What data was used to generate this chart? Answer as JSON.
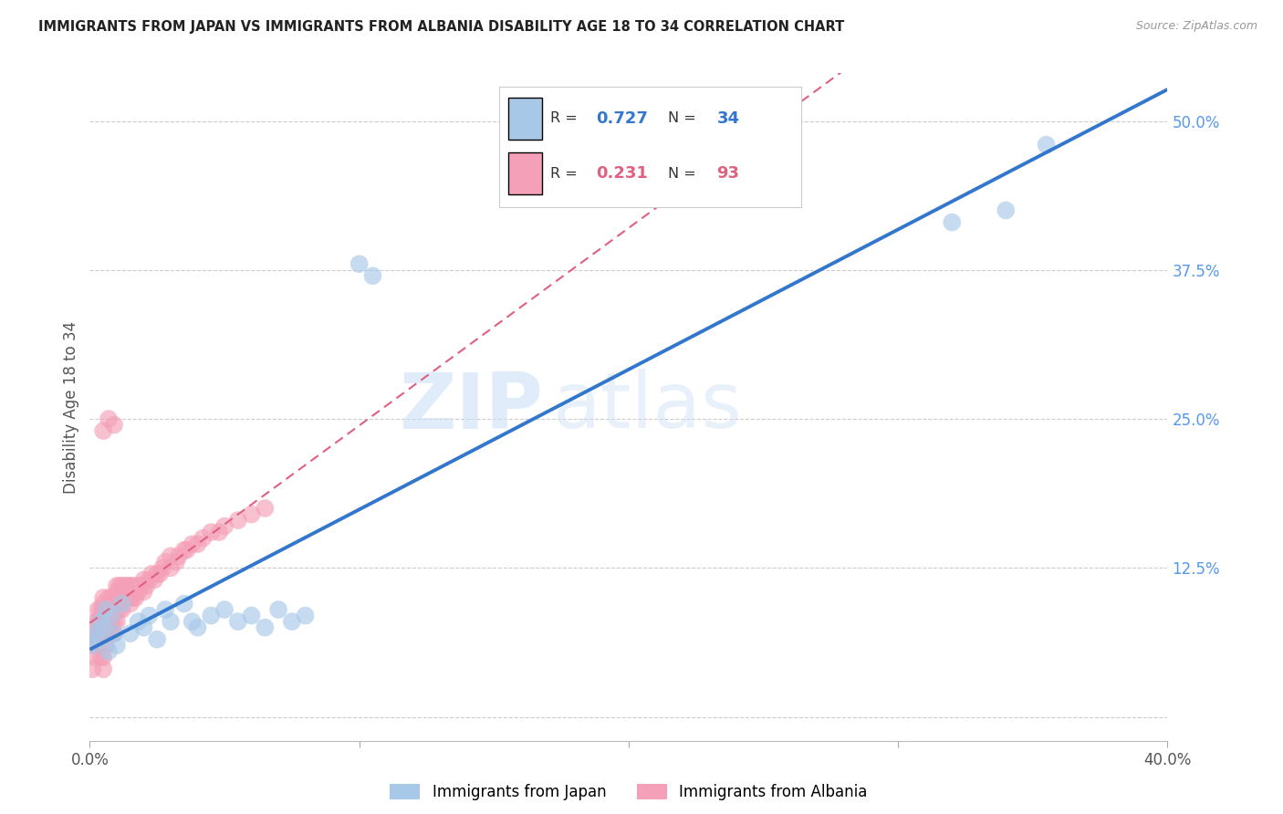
{
  "title": "IMMIGRANTS FROM JAPAN VS IMMIGRANTS FROM ALBANIA DISABILITY AGE 18 TO 34 CORRELATION CHART",
  "source": "Source: ZipAtlas.com",
  "ylabel": "Disability Age 18 to 34",
  "xmin": 0.0,
  "xmax": 0.4,
  "ymin": -0.02,
  "ymax": 0.54,
  "y_tick_vals_right": [
    0.0,
    0.125,
    0.25,
    0.375,
    0.5
  ],
  "y_tick_labels_right": [
    "",
    "12.5%",
    "25.0%",
    "37.5%",
    "50.0%"
  ],
  "japan_R": 0.727,
  "japan_N": 34,
  "albania_R": 0.231,
  "albania_N": 93,
  "japan_color": "#a8c8e8",
  "albania_color": "#f4a0b8",
  "japan_line_color": "#3377cc",
  "albania_line_color": "#e06080",
  "watermark_zip": "ZIP",
  "watermark_atlas": "atlas",
  "japan_scatter_x": [
    0.001,
    0.002,
    0.003,
    0.004,
    0.005,
    0.006,
    0.007,
    0.008,
    0.009,
    0.01,
    0.012,
    0.015,
    0.018,
    0.02,
    0.022,
    0.025,
    0.028,
    0.03,
    0.035,
    0.038,
    0.04,
    0.045,
    0.05,
    0.055,
    0.06,
    0.065,
    0.07,
    0.075,
    0.08,
    0.1,
    0.105,
    0.32,
    0.34,
    0.355
  ],
  "japan_scatter_y": [
    0.06,
    0.07,
    0.065,
    0.08,
    0.075,
    0.09,
    0.055,
    0.085,
    0.07,
    0.06,
    0.095,
    0.07,
    0.08,
    0.075,
    0.085,
    0.065,
    0.09,
    0.08,
    0.095,
    0.08,
    0.075,
    0.085,
    0.09,
    0.08,
    0.085,
    0.075,
    0.09,
    0.08,
    0.085,
    0.38,
    0.37,
    0.415,
    0.425,
    0.48
  ],
  "albania_scatter_x": [
    0.001,
    0.001,
    0.002,
    0.002,
    0.002,
    0.003,
    0.003,
    0.003,
    0.003,
    0.004,
    0.004,
    0.004,
    0.004,
    0.005,
    0.005,
    0.005,
    0.005,
    0.005,
    0.005,
    0.005,
    0.005,
    0.005,
    0.005,
    0.006,
    0.006,
    0.006,
    0.006,
    0.007,
    0.007,
    0.007,
    0.007,
    0.007,
    0.008,
    0.008,
    0.008,
    0.008,
    0.009,
    0.009,
    0.009,
    0.01,
    0.01,
    0.01,
    0.01,
    0.01,
    0.01,
    0.011,
    0.011,
    0.011,
    0.012,
    0.012,
    0.012,
    0.013,
    0.013,
    0.013,
    0.014,
    0.014,
    0.015,
    0.015,
    0.015,
    0.016,
    0.016,
    0.017,
    0.018,
    0.018,
    0.019,
    0.02,
    0.02,
    0.021,
    0.022,
    0.023,
    0.024,
    0.025,
    0.026,
    0.027,
    0.028,
    0.03,
    0.03,
    0.032,
    0.033,
    0.035,
    0.036,
    0.038,
    0.04,
    0.042,
    0.045,
    0.048,
    0.05,
    0.055,
    0.06,
    0.065,
    0.005,
    0.007,
    0.009
  ],
  "albania_scatter_y": [
    0.04,
    0.06,
    0.05,
    0.07,
    0.08,
    0.06,
    0.07,
    0.08,
    0.09,
    0.05,
    0.07,
    0.08,
    0.09,
    0.04,
    0.05,
    0.06,
    0.07,
    0.075,
    0.08,
    0.085,
    0.09,
    0.095,
    0.1,
    0.06,
    0.07,
    0.08,
    0.09,
    0.07,
    0.08,
    0.085,
    0.09,
    0.1,
    0.07,
    0.08,
    0.09,
    0.1,
    0.07,
    0.08,
    0.09,
    0.08,
    0.09,
    0.095,
    0.1,
    0.105,
    0.11,
    0.09,
    0.1,
    0.11,
    0.09,
    0.1,
    0.11,
    0.1,
    0.105,
    0.11,
    0.1,
    0.11,
    0.095,
    0.1,
    0.11,
    0.1,
    0.11,
    0.1,
    0.105,
    0.11,
    0.11,
    0.105,
    0.115,
    0.11,
    0.115,
    0.12,
    0.115,
    0.12,
    0.12,
    0.125,
    0.13,
    0.125,
    0.135,
    0.13,
    0.135,
    0.14,
    0.14,
    0.145,
    0.145,
    0.15,
    0.155,
    0.155,
    0.16,
    0.165,
    0.17,
    0.175,
    0.24,
    0.25,
    0.245
  ]
}
